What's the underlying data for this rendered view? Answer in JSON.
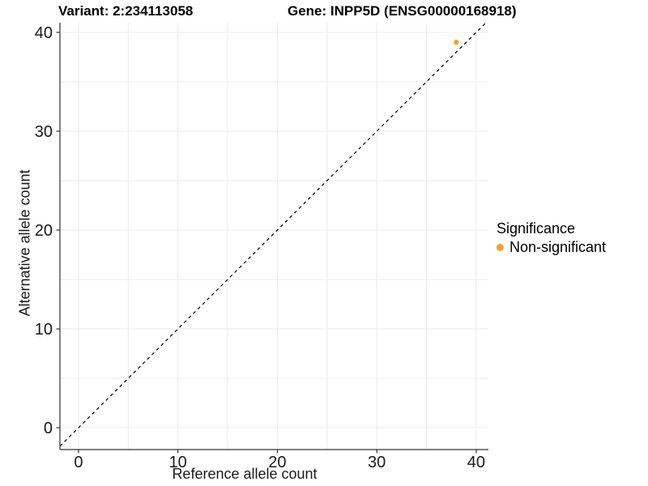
{
  "header": {
    "variant_title": "Variant: 2:234113058",
    "gene_title": "Gene: INPP5D (ENSG00000168918)"
  },
  "legend": {
    "title": "Significance",
    "items": [
      {
        "label": "Non-significant",
        "color": "#F9A02C"
      }
    ]
  },
  "chart_data": {
    "type": "scatter",
    "title": "Variant: 2:234113058  /  Gene: INPP5D (ENSG00000168918)",
    "xlabel": "Reference allele count",
    "ylabel": "Alternative allele count",
    "xlim": [
      -1.87,
      41.23
    ],
    "ylim": [
      -2.21,
      40.98
    ],
    "x_ticks": [
      0,
      10,
      20,
      30,
      40
    ],
    "y_ticks": [
      0,
      10,
      20,
      30,
      40
    ],
    "grid": true,
    "grid_step": 5,
    "grid_color": "#EBEBEB",
    "axis_color": "#333333",
    "tick_label_color": "#1a1a1a",
    "identity_line": {
      "style": "dashed",
      "color": "#000000",
      "from": -1.87,
      "to": 40.98
    },
    "legend_position": "right",
    "series": [
      {
        "name": "Non-significant",
        "color": "#F9A02C",
        "points": [
          [
            38,
            39
          ]
        ]
      }
    ]
  }
}
